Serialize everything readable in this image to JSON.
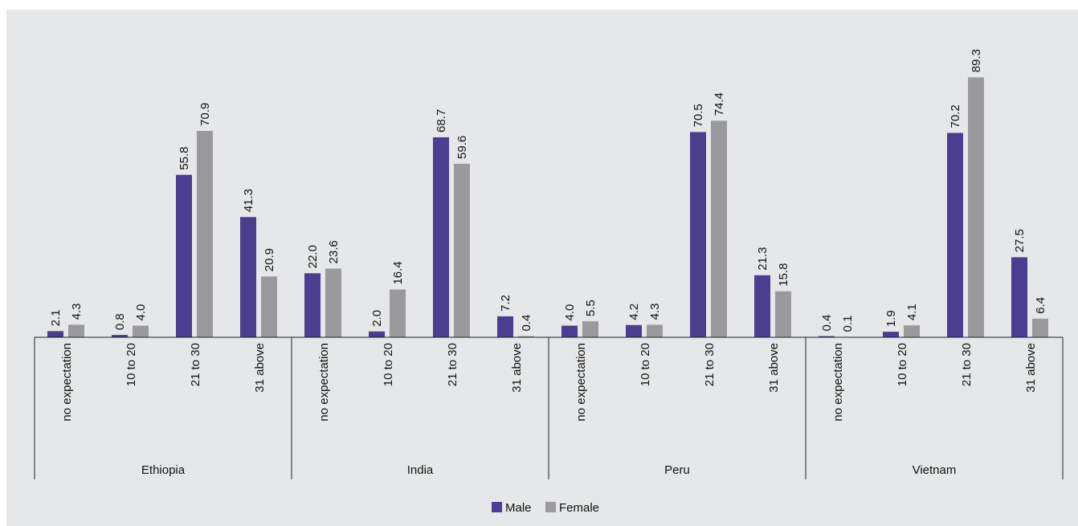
{
  "colors": {
    "background": "#e6e7e8",
    "male": "#4b3d8f",
    "female": "#9a9a9c",
    "axis": "#222222"
  },
  "legend": {
    "male_label": "Male",
    "female_label": "Female"
  },
  "chart_data": {
    "type": "bar",
    "groups": [
      {
        "name": "Ethiopia",
        "categories": [
          "no expectation",
          "10 to 20",
          "21 to 30",
          "31 above"
        ],
        "male": [
          2.1,
          0.8,
          55.8,
          41.3
        ],
        "female": [
          4.3,
          4.0,
          70.9,
          20.9
        ],
        "male_labels": [
          "2.1",
          "0.8",
          "55.8",
          "41.3"
        ],
        "female_labels": [
          "4.3",
          "4.0",
          "70.9",
          "20.9"
        ]
      },
      {
        "name": "India",
        "categories": [
          "no expectation",
          "10 to 20",
          "21 to 30",
          "31 above"
        ],
        "male": [
          22.0,
          2.0,
          68.7,
          7.2
        ],
        "female": [
          23.6,
          16.4,
          59.6,
          0.4
        ],
        "male_labels": [
          "22.0",
          "2.0",
          "68.7",
          "7.2"
        ],
        "female_labels": [
          "23.6",
          "16.4",
          "59.6",
          "0.4"
        ]
      },
      {
        "name": "Peru",
        "categories": [
          "no expectation",
          "10 to 20",
          "21 to 30",
          "31 above"
        ],
        "male": [
          4.0,
          4.2,
          70.5,
          21.3
        ],
        "female": [
          5.5,
          4.3,
          74.4,
          15.8
        ],
        "male_labels": [
          "4.0",
          "4.2",
          "70.5",
          "21.3"
        ],
        "female_labels": [
          "5.5",
          "4.3",
          "74.4",
          "15.8"
        ]
      },
      {
        "name": "Vietnam",
        "categories": [
          "no expectation",
          "10 to 20",
          "21 to 30",
          "31 above"
        ],
        "male": [
          0.4,
          1.9,
          70.2,
          27.5
        ],
        "female": [
          0.1,
          4.1,
          89.3,
          6.4
        ],
        "male_labels": [
          "0.4",
          "1.9",
          "70.2",
          "27.5"
        ],
        "female_labels": [
          "0.1",
          "4.1",
          "89.3",
          "6.4"
        ]
      }
    ],
    "series": [
      {
        "name": "Male",
        "key": "male"
      },
      {
        "name": "Female",
        "key": "female"
      }
    ],
    "ylim": [
      0,
      100
    ],
    "grid": false,
    "legend_position": "bottom-center"
  }
}
